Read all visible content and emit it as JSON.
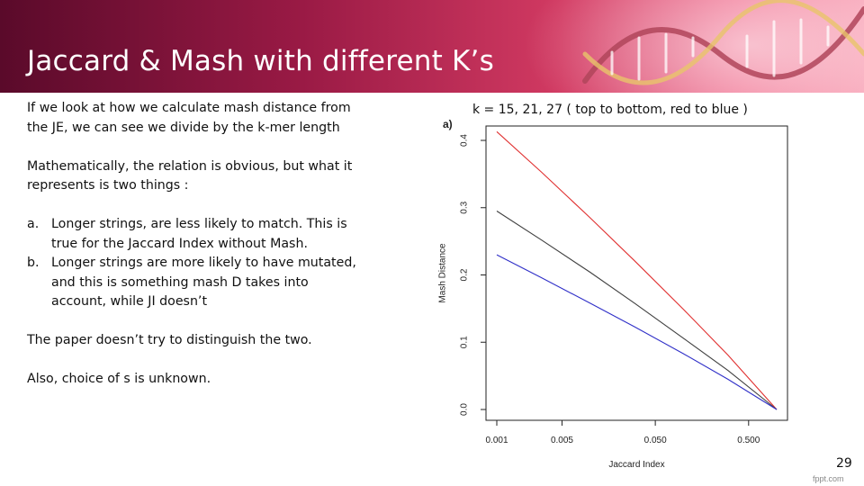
{
  "slide": {
    "title": "Jaccard & Mash with different K’s",
    "page_number": "29",
    "logo_text": "fppt.com"
  },
  "body": {
    "p1": "If we look at how we calculate mash distance from the JE, we can see we divide by the k-mer length",
    "p2": "Mathematically, the relation is obvious, but what it represents is two things :",
    "list": [
      {
        "marker": "a.",
        "text": "Longer strings, are less likely to match. This is true for the Jaccard Index without Mash."
      },
      {
        "marker": "b.",
        "text": "Longer strings are more likely to have mutated, and this is something mash D takes into account, while JI doesn’t"
      }
    ],
    "p3": "The paper doesn’t try to distinguish the two.",
    "p4": "Also, choice of s is unknown."
  },
  "chart_caption": "k = 15, 21, 27 ( top to bottom, red to blue )",
  "chart_data": {
    "type": "line",
    "panel_label": "a)",
    "xlabel": "Jaccard Index",
    "ylabel": "Mash Distance",
    "x_scale": "log",
    "xlim": [
      0.001,
      1
    ],
    "ylim": [
      0,
      0.4
    ],
    "x_ticks": [
      {
        "value": 0.001,
        "label": "0.001"
      },
      {
        "value": 0.005,
        "label": "0.005"
      },
      {
        "value": 0.05,
        "label": "0.050"
      },
      {
        "value": 0.5,
        "label": "0.500"
      }
    ],
    "y_ticks": [
      {
        "value": 0,
        "label": "0.0"
      },
      {
        "value": 0.1,
        "label": "0.1"
      },
      {
        "value": 0.2,
        "label": "0.2"
      },
      {
        "value": 0.3,
        "label": "0.3"
      },
      {
        "value": 0.4,
        "label": "0.4"
      }
    ],
    "grid": false,
    "series": [
      {
        "k": 15,
        "color": "#e03030",
        "x": [
          0.001,
          0.003,
          0.01,
          0.03,
          0.1,
          0.3,
          1
        ],
        "y": [
          0.413,
          0.353,
          0.285,
          0.221,
          0.149,
          0.081,
          0
        ]
      },
      {
        "k": 21,
        "color": "#404040",
        "x": [
          0.001,
          0.003,
          0.01,
          0.03,
          0.1,
          0.3,
          1
        ],
        "y": [
          0.295,
          0.252,
          0.204,
          0.158,
          0.106,
          0.058,
          0
        ]
      },
      {
        "k": 27,
        "color": "#3030c8",
        "x": [
          0.001,
          0.003,
          0.01,
          0.03,
          0.1,
          0.3,
          1
        ],
        "y": [
          0.23,
          0.196,
          0.158,
          0.123,
          0.083,
          0.045,
          0
        ]
      }
    ]
  }
}
